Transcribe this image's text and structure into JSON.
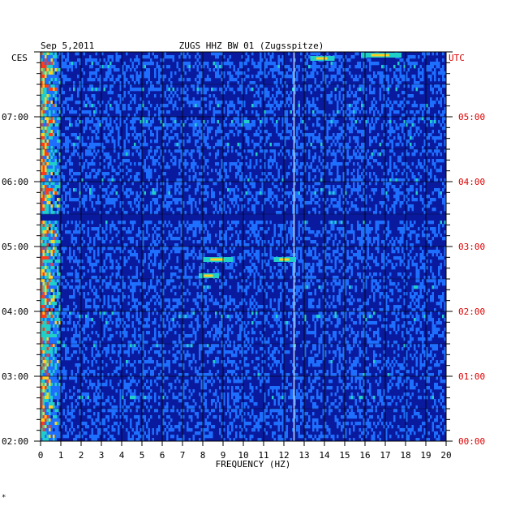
{
  "header": {
    "date": "Sep 5,2011",
    "station": "ZUGS HHZ BW 01 (Zugsspitze)",
    "left_zone": "CES",
    "right_zone": "UTC"
  },
  "footer": {
    "mark": "*"
  },
  "colors": {
    "background": "#ffffff",
    "axis_text": "#000000",
    "utc_text": "#dd0000",
    "low": "#0a1a9e",
    "mid": "#1f6fff",
    "high": "#20d0c8",
    "peak": "#ffd020",
    "max": "#ff3b1a"
  },
  "chart_data": {
    "type": "heatmap",
    "title": "ZUGS HHZ BW 01 (Zugsspitze)",
    "subtitle": "Sep 5,2011",
    "xlabel": "FREQUENCY (HZ)",
    "xlim": [
      0,
      20
    ],
    "x_ticks": [
      "0",
      "1",
      "2",
      "3",
      "4",
      "5",
      "6",
      "7",
      "8",
      "9",
      "10",
      "11",
      "12",
      "13",
      "14",
      "15",
      "16",
      "17",
      "18",
      "19",
      "20"
    ],
    "y_range_local": [
      "02:00",
      "08:00"
    ],
    "y_ticks_left": [
      "07:00",
      "06:00",
      "05:00",
      "04:00",
      "03:00",
      "02:00"
    ],
    "y_ticks_right": [
      "05:00",
      "04:00",
      "03:00",
      "02:00",
      "01:00",
      "00:00"
    ],
    "y_tick_hours_left": [
      7,
      6,
      5,
      4,
      3,
      2
    ],
    "y_range_hours": [
      2,
      8
    ],
    "left_axis_label": "CES",
    "right_axis_label": "UTC",
    "grid": true,
    "features": [
      {
        "type": "line",
        "freq_hz": 12.5
      },
      {
        "type": "band",
        "freq_hz": [
          0,
          1.0
        ],
        "intensity": "high"
      },
      {
        "type": "quiet",
        "time_hours": [
          5.4,
          5.5
        ]
      },
      {
        "type": "burst",
        "freq_hz": [
          8.0,
          9.5
        ],
        "time_hours": 4.8
      },
      {
        "type": "burst",
        "freq_hz": [
          7.8,
          8.8
        ],
        "time_hours": 4.55
      },
      {
        "type": "burst",
        "freq_hz": [
          11.5,
          12.6
        ],
        "time_hours": 4.8
      },
      {
        "type": "burst",
        "freq_hz": [
          13.3,
          14.5
        ],
        "time_hours": 7.9
      },
      {
        "type": "burst",
        "freq_hz": [
          15.8,
          17.8
        ],
        "time_hours": 7.95
      }
    ]
  }
}
